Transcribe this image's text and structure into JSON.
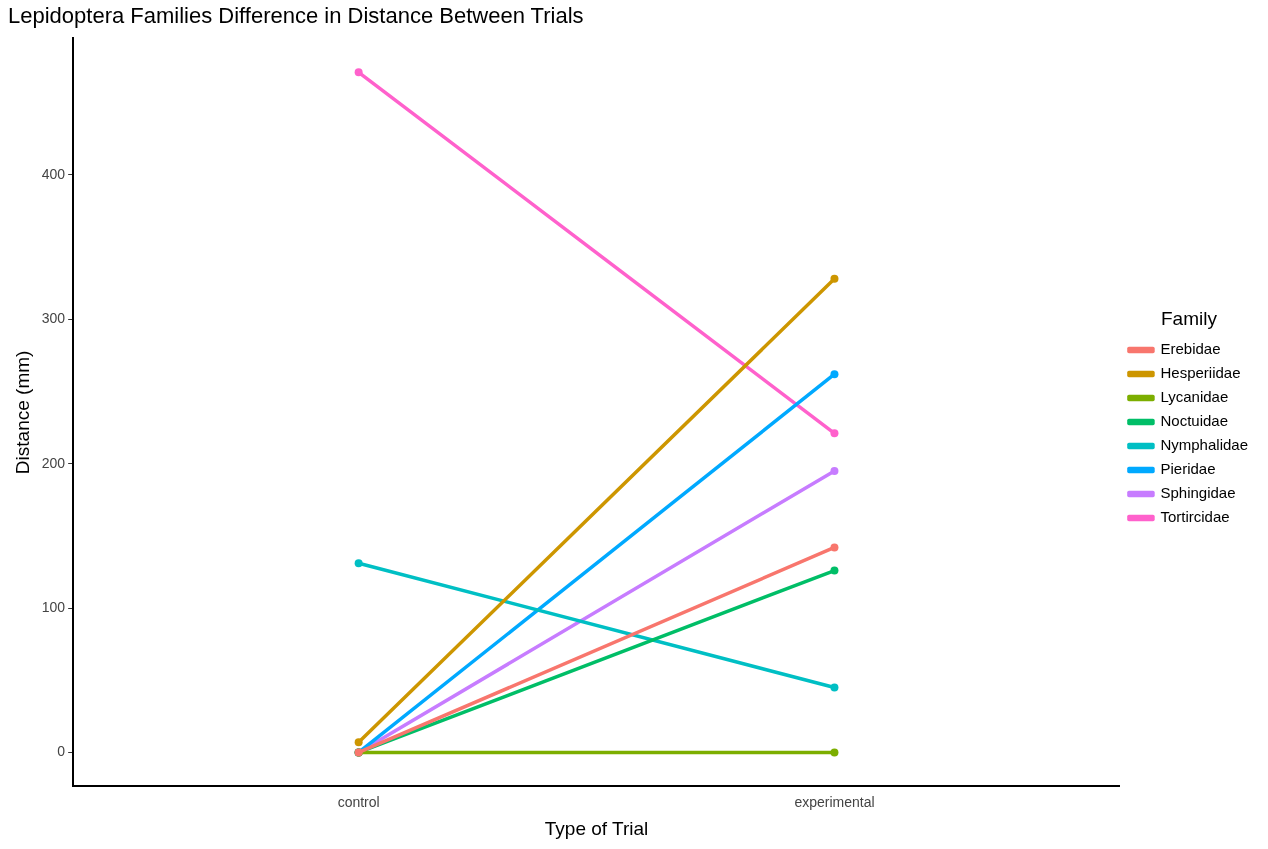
{
  "chart_data": {
    "type": "line",
    "title": "Lepidoptera Families Difference in Distance Between Trials",
    "xlabel": "Type of Trial",
    "ylabel": "Distance (mm)",
    "legend_title": "Family",
    "categories": [
      "control",
      "experimental"
    ],
    "series": [
      {
        "name": "Erebidae",
        "color": "#f8766d",
        "values": [
          0,
          142
        ]
      },
      {
        "name": "Hesperiidae",
        "color": "#cd9600",
        "values": [
          7,
          328
        ]
      },
      {
        "name": "Lycanidae",
        "color": "#7cae00",
        "values": [
          0,
          0
        ]
      },
      {
        "name": "Noctuidae",
        "color": "#00be67",
        "values": [
          0,
          126
        ]
      },
      {
        "name": "Nymphalidae",
        "color": "#00bfc4",
        "values": [
          131,
          45
        ]
      },
      {
        "name": "Pieridae",
        "color": "#00a9ff",
        "values": [
          0,
          262
        ]
      },
      {
        "name": "Sphingidae",
        "color": "#c77cff",
        "values": [
          0,
          195
        ]
      },
      {
        "name": "Tortircidae",
        "color": "#ff61cc",
        "values": [
          471,
          221
        ]
      }
    ],
    "ylim": [
      -23.5,
      494.5
    ],
    "yticks": [
      0,
      100,
      200,
      300,
      400
    ],
    "grid": false,
    "legend": "right",
    "marker": "circle",
    "line_style": "solid"
  }
}
